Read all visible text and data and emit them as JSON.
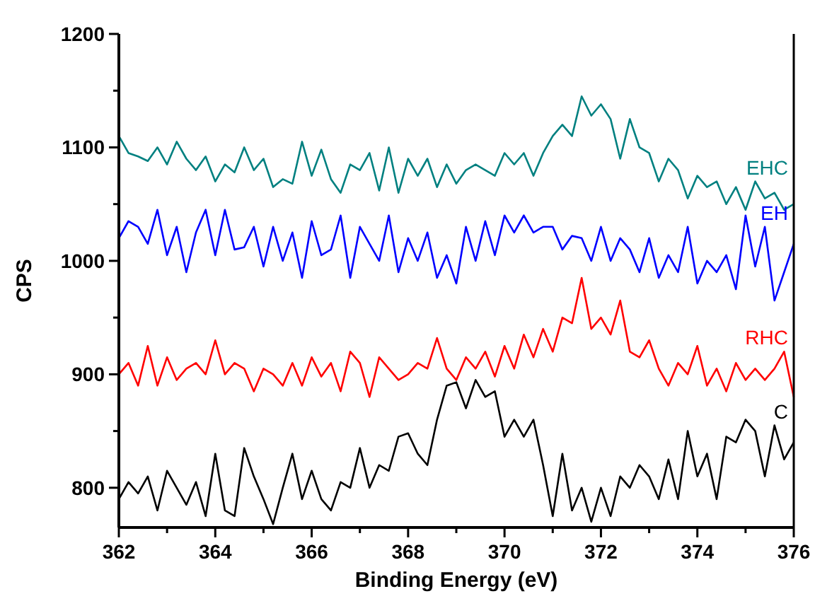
{
  "chart_data": {
    "type": "line",
    "xlabel": "Binding Energy (eV)",
    "ylabel": "CPS",
    "xlim": [
      362,
      376
    ],
    "ylim": [
      765,
      1200
    ],
    "xticks": [
      362,
      {
        "value": 363,
        "label": null
      },
      364,
      {
        "value": 365,
        "label": null
      },
      366,
      {
        "value": 367,
        "label": null
      },
      368,
      {
        "value": 369,
        "label": null
      },
      370,
      {
        "value": 371,
        "label": null
      },
      372,
      {
        "value": 373,
        "label": null
      },
      374,
      {
        "value": 375,
        "label": null
      },
      376
    ],
    "yticks": [
      800,
      {
        "value": 850,
        "label": null
      },
      900,
      {
        "value": 950,
        "label": null
      },
      1000,
      {
        "value": 1050,
        "label": null
      },
      1100,
      {
        "value": 1150,
        "label": null
      },
      1200
    ],
    "grid": false,
    "marker": "none",
    "line_style": "solid",
    "x": [
      362,
      362.2,
      362.4,
      362.6,
      362.8,
      363,
      363.2,
      363.4,
      363.6,
      363.8,
      364,
      364.2,
      364.4,
      364.6,
      364.8,
      365,
      365.2,
      365.4,
      365.6,
      365.8,
      366,
      366.2,
      366.4,
      366.6,
      366.8,
      367,
      367.2,
      367.4,
      367.6,
      367.8,
      368,
      368.2,
      368.4,
      368.6,
      368.8,
      369,
      369.2,
      369.4,
      369.6,
      369.8,
      370,
      370.2,
      370.4,
      370.6,
      370.8,
      371,
      371.2,
      371.4,
      371.6,
      371.8,
      372,
      372.2,
      372.4,
      372.6,
      372.8,
      373,
      373.2,
      373.4,
      373.6,
      373.8,
      374,
      374.2,
      374.4,
      374.6,
      374.8,
      375,
      375.2,
      375.4,
      375.6,
      375.8,
      376
    ],
    "series": [
      {
        "name": "EHC",
        "color": "#008080",
        "values": [
          1110,
          1095,
          1092,
          1088,
          1100,
          1085,
          1105,
          1090,
          1080,
          1092,
          1070,
          1085,
          1078,
          1100,
          1080,
          1090,
          1065,
          1072,
          1068,
          1105,
          1075,
          1098,
          1072,
          1060,
          1085,
          1080,
          1095,
          1062,
          1100,
          1060,
          1090,
          1075,
          1090,
          1065,
          1085,
          1068,
          1080,
          1085,
          1080,
          1075,
          1095,
          1085,
          1095,
          1075,
          1095,
          1110,
          1120,
          1110,
          1145,
          1128,
          1138,
          1125,
          1090,
          1125,
          1100,
          1095,
          1070,
          1090,
          1080,
          1055,
          1075,
          1065,
          1070,
          1050,
          1065,
          1045,
          1070,
          1055,
          1060,
          1045,
          1050
        ]
      },
      {
        "name": "EH",
        "color": "#0000ff",
        "values": [
          1020,
          1035,
          1030,
          1015,
          1045,
          1005,
          1030,
          990,
          1025,
          1045,
          1005,
          1045,
          1010,
          1012,
          1030,
          995,
          1030,
          1000,
          1025,
          985,
          1035,
          1005,
          1010,
          1040,
          985,
          1030,
          1015,
          1000,
          1040,
          990,
          1020,
          1000,
          1025,
          985,
          1005,
          980,
          1030,
          1000,
          1035,
          1005,
          1040,
          1025,
          1040,
          1025,
          1030,
          1030,
          1010,
          1022,
          1020,
          1000,
          1030,
          1000,
          1020,
          1010,
          990,
          1020,
          985,
          1005,
          990,
          1030,
          980,
          1000,
          990,
          1005,
          975,
          1040,
          995,
          1030,
          965,
          990,
          1015
        ]
      },
      {
        "name": "RHC",
        "color": "#ff0000",
        "values": [
          900,
          910,
          890,
          925,
          890,
          915,
          895,
          905,
          910,
          900,
          930,
          900,
          910,
          905,
          885,
          905,
          900,
          890,
          910,
          890,
          915,
          898,
          910,
          885,
          920,
          910,
          880,
          915,
          905,
          895,
          900,
          910,
          905,
          932,
          905,
          895,
          915,
          905,
          920,
          898,
          925,
          905,
          935,
          915,
          940,
          920,
          950,
          945,
          985,
          940,
          950,
          935,
          965,
          920,
          915,
          930,
          905,
          890,
          910,
          900,
          925,
          890,
          905,
          885,
          910,
          895,
          905,
          895,
          905,
          920,
          880
        ]
      },
      {
        "name": "C",
        "color": "#000000",
        "values": [
          790,
          805,
          795,
          810,
          780,
          815,
          800,
          785,
          805,
          775,
          830,
          780,
          775,
          835,
          810,
          790,
          768,
          800,
          830,
          790,
          815,
          790,
          780,
          805,
          800,
          835,
          800,
          820,
          815,
          845,
          848,
          830,
          820,
          860,
          890,
          893,
          870,
          895,
          880,
          885,
          845,
          860,
          845,
          860,
          820,
          775,
          830,
          780,
          800,
          770,
          800,
          775,
          810,
          800,
          820,
          810,
          790,
          825,
          790,
          850,
          810,
          830,
          790,
          845,
          840,
          860,
          850,
          810,
          855,
          825,
          840
        ]
      }
    ]
  }
}
